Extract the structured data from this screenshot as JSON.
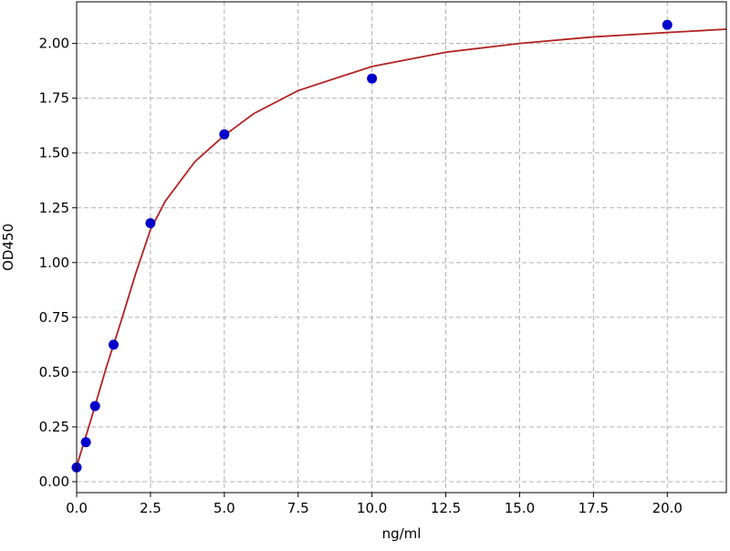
{
  "chart_data": {
    "type": "scatter",
    "xlabel": "ng/ml",
    "ylabel": "OD450",
    "xlim": [
      0,
      22
    ],
    "ylim": [
      -0.05,
      2.19
    ],
    "xticks": [
      {
        "value": 0,
        "label": "0.0"
      },
      {
        "value": 2.5,
        "label": "2.5"
      },
      {
        "value": 5,
        "label": "5.0"
      },
      {
        "value": 7.5,
        "label": "7.5"
      },
      {
        "value": 10,
        "label": "10.0"
      },
      {
        "value": 12.5,
        "label": "12.5"
      },
      {
        "value": 15,
        "label": "15.0"
      },
      {
        "value": 17.5,
        "label": "17.5"
      },
      {
        "value": 20,
        "label": "20.0"
      }
    ],
    "yticks": [
      {
        "value": 0,
        "label": "0.00"
      },
      {
        "value": 0.25,
        "label": "0.25"
      },
      {
        "value": 0.5,
        "label": "0.50"
      },
      {
        "value": 0.75,
        "label": "0.75"
      },
      {
        "value": 1,
        "label": "1.00"
      },
      {
        "value": 1.25,
        "label": "1.25"
      },
      {
        "value": 1.5,
        "label": "1.50"
      },
      {
        "value": 1.75,
        "label": "1.75"
      },
      {
        "value": 2,
        "label": "2.00"
      }
    ],
    "grid": true,
    "series": [
      {
        "type": "line",
        "color": "#b22222",
        "x": [
          0,
          0.5,
          1,
          1.25,
          1.5,
          2,
          2.5,
          3,
          4,
          5,
          6,
          7.5,
          10,
          12.5,
          15,
          17.5,
          20,
          22
        ],
        "values": [
          0.07,
          0.29,
          0.52,
          0.625,
          0.73,
          0.95,
          1.15,
          1.28,
          1.46,
          1.58,
          1.68,
          1.785,
          1.895,
          1.96,
          2.0,
          2.03,
          2.05,
          2.065
        ]
      },
      {
        "type": "scatter",
        "color": "#0000cc",
        "x": [
          0,
          0.3125,
          0.625,
          1.25,
          2.5,
          5,
          10,
          20
        ],
        "values": [
          0.065,
          0.18,
          0.345,
          0.625,
          1.18,
          1.585,
          1.84,
          2.085
        ]
      }
    ]
  }
}
